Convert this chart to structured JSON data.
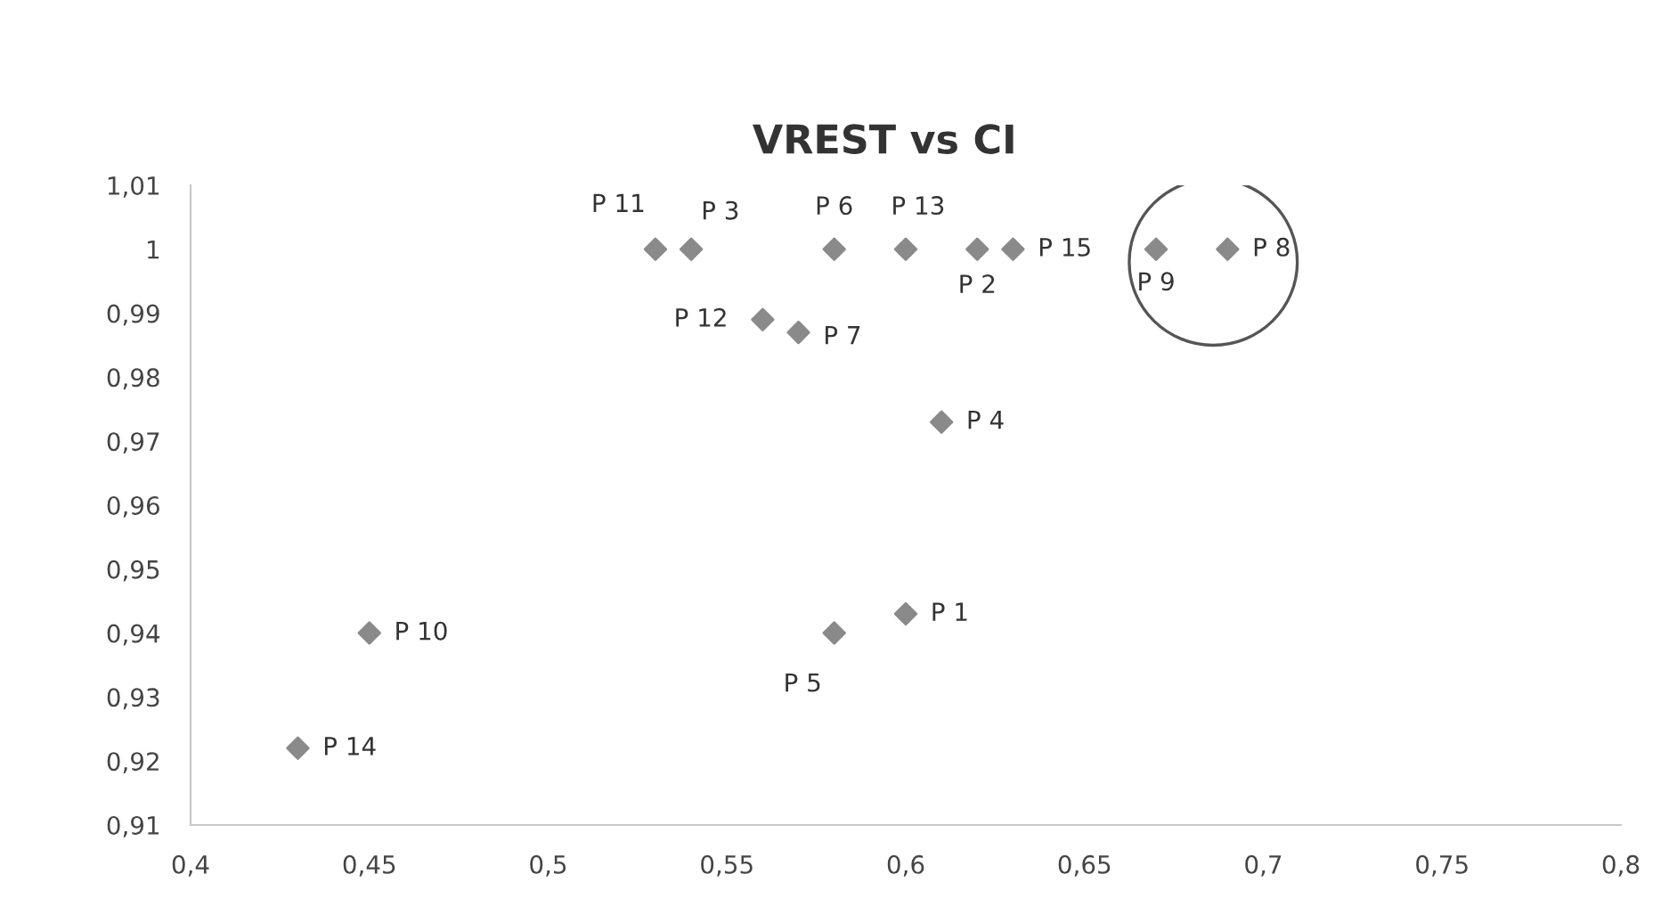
{
  "chart_data": {
    "type": "scatter",
    "title": "VREST vs CI",
    "marker": "diamond",
    "grid": false,
    "x": [
      0.6,
      0.62,
      0.54,
      0.61,
      0.58,
      0.58,
      0.57,
      0.69,
      0.67,
      0.45,
      0.53,
      0.56,
      0.6,
      0.43,
      0.63
    ],
    "values": [
      0.943,
      1,
      1,
      0.973,
      0.94,
      1,
      0.987,
      1,
      1,
      0.94,
      1,
      0.989,
      1,
      0.922,
      1
    ],
    "value_labels": [
      "P 1",
      "P 2",
      "P 3",
      "P 4",
      "P 5",
      "P 6",
      "P 7",
      "P 8",
      "P 9",
      "P 10",
      "P 11",
      "P 12",
      "P 13",
      "P 14",
      "P 15"
    ],
    "color": "#8a8a8a",
    "xlim": [
      0.4,
      0.8
    ],
    "xticks": [
      {
        "value": 0.4,
        "label": "0,4"
      },
      {
        "value": 0.45,
        "label": "0,45"
      },
      {
        "value": 0.5,
        "label": "0,5"
      },
      {
        "value": 0.55,
        "label": "0,55"
      },
      {
        "value": 0.6,
        "label": "0,6"
      },
      {
        "value": 0.65,
        "label": "0,65"
      },
      {
        "value": 0.7,
        "label": "0,7"
      },
      {
        "value": 0.75,
        "label": "0,75"
      },
      {
        "value": 0.8,
        "label": "0,8"
      }
    ],
    "ylim": [
      0.91,
      1.01
    ],
    "yticks": [
      {
        "value": 0.91,
        "label": "0,91"
      },
      {
        "value": 0.92,
        "label": "0,92"
      },
      {
        "value": 0.93,
        "label": "0,93"
      },
      {
        "value": 0.94,
        "label": "0,94"
      },
      {
        "value": 0.95,
        "label": "0,95"
      },
      {
        "value": 0.96,
        "label": "0,96"
      },
      {
        "value": 0.97,
        "label": "0,97"
      },
      {
        "value": 0.98,
        "label": "0,98"
      },
      {
        "value": 0.99,
        "label": "0,99"
      },
      1,
      {
        "value": 1.01,
        "label": "1,01"
      }
    ]
  }
}
